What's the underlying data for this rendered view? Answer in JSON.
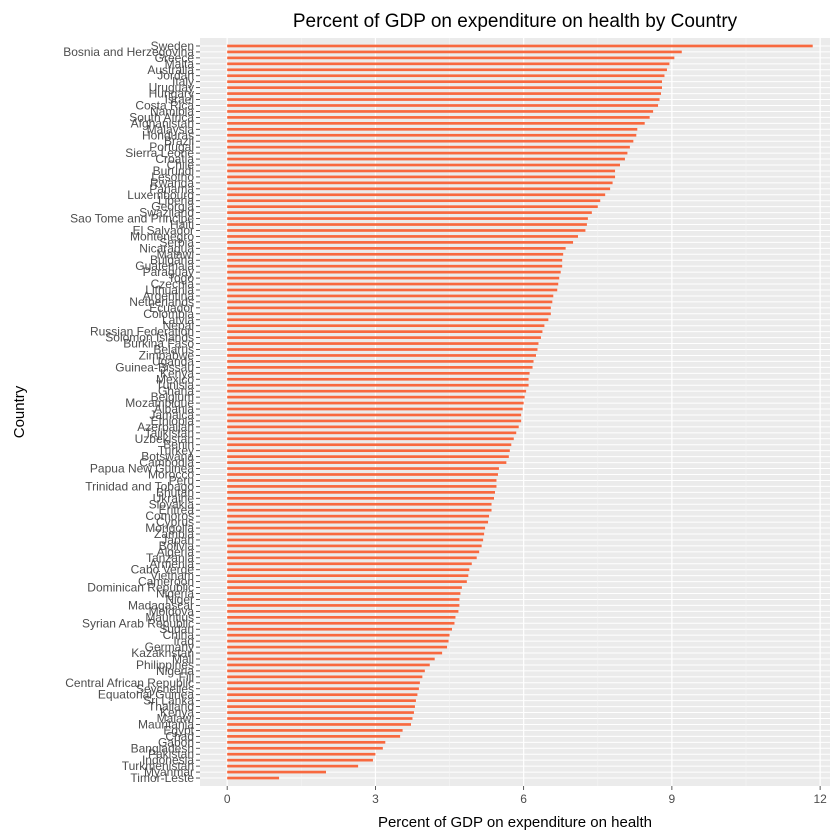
{
  "chart_data": {
    "type": "bar",
    "orientation": "horizontal",
    "title": "Percent of GDP on expenditure on health by Country",
    "xlabel": "Percent of GDP on expenditure on health",
    "ylabel": "Country",
    "xlim": [
      -0.55,
      12.2
    ],
    "x_ticks": [
      0,
      3,
      6,
      9,
      12
    ],
    "grid": true,
    "bar_color": "#f8693f",
    "panel_color": "#ebebeb",
    "categories": [
      "Sweden",
      "Bosnia and Herzegovina",
      "Greece",
      "Malta",
      "Australia",
      "Jordan",
      "Italy",
      "Uruguay",
      "Hungary",
      "Israel",
      "Costa Rica",
      "Namibia",
      "South Africa",
      "Afghanistan",
      "Malaysia",
      "Honduras",
      "Brazil",
      "Portugal",
      "Sierra Leone",
      "Croatia",
      "Chile",
      "Burundi",
      "Lesotho",
      "Rwanda",
      "Panama",
      "Luxembourg",
      "Liberia",
      "Georgia",
      "Swaziland",
      "Sao Tome and Principe",
      "Haiti",
      "El Salvador",
      "Montenegro",
      "Serbia",
      "Nicaragua",
      "Malawi",
      "Bulgaria",
      "Guatemala",
      "Paraguay",
      "Togo",
      "Czechia",
      "Lithuania",
      "Argentina",
      "Netherlands",
      "Ecuador",
      "Colombia",
      "Latvia",
      "Nepal",
      "Russian Federation",
      "Solomon Islands",
      "Burkina Faso",
      "Belarus",
      "Zimbabwe",
      "Uganda",
      "Guinea-Bissau",
      "Kenya",
      "Mexico",
      "Tunisia",
      "Ghana",
      "Belgium",
      "Mozambique",
      "Albania",
      "Jamaica",
      "Ethiopia",
      "Azerbaijan",
      "Tajikistan",
      "Uzbekistan",
      "Benin",
      "Turkey",
      "Botswana",
      "Cambodia",
      "Papua New Guinea",
      "Morocco",
      "Peru",
      "Trinidad and Tobago",
      "Bhutan",
      "Ukraine",
      "Slovakia",
      "Eritrea",
      "Comoros",
      "Cyprus",
      "Mongolia",
      "Zambia",
      "Japan",
      "Bolivia",
      "Algeria",
      "Tanzania",
      "Armenia",
      "Cabo Verde",
      "Vietnam",
      "Cameroon",
      "Dominican Republic",
      "Nigeria",
      "Niger",
      "Madagascar",
      "Moldova",
      "Mauritius",
      "Syrian Arab Republic",
      "Sudan",
      "China",
      "Iraq",
      "Germany",
      "Kazakhstan",
      "Mali",
      "Philippines",
      "Nigeria",
      "Fiji",
      "Central African Republic",
      "Seychelles",
      "Equatorial Guinea",
      "Sri Lanka",
      "Thailand",
      "Kenya",
      "Malawi",
      "Mauritania",
      "Egypt",
      "Chad",
      "Gabon",
      "Bangladesh",
      "Pakistan",
      "Indonesia",
      "Turkmenistan",
      "Myanmar",
      "Timor-Leste"
    ],
    "values": [
      11.85,
      9.2,
      9.05,
      8.95,
      8.9,
      8.85,
      8.8,
      8.8,
      8.78,
      8.75,
      8.72,
      8.62,
      8.55,
      8.45,
      8.3,
      8.28,
      8.22,
      8.15,
      8.1,
      8.05,
      7.95,
      7.85,
      7.85,
      7.8,
      7.75,
      7.65,
      7.55,
      7.5,
      7.38,
      7.3,
      7.28,
      7.25,
      7.1,
      7.0,
      6.85,
      6.8,
      6.78,
      6.78,
      6.75,
      6.72,
      6.7,
      6.68,
      6.6,
      6.58,
      6.55,
      6.55,
      6.5,
      6.42,
      6.38,
      6.35,
      6.3,
      6.28,
      6.25,
      6.2,
      6.18,
      6.12,
      6.1,
      6.1,
      6.05,
      6.02,
      6.0,
      5.98,
      5.95,
      5.95,
      5.9,
      5.85,
      5.8,
      5.75,
      5.72,
      5.7,
      5.65,
      5.5,
      5.48,
      5.45,
      5.45,
      5.42,
      5.4,
      5.35,
      5.35,
      5.3,
      5.28,
      5.22,
      5.2,
      5.18,
      5.15,
      5.1,
      5.05,
      4.95,
      4.9,
      4.88,
      4.85,
      4.75,
      4.72,
      4.7,
      4.7,
      4.68,
      4.62,
      4.6,
      4.55,
      4.5,
      4.48,
      4.45,
      4.35,
      4.2,
      4.1,
      4.0,
      3.95,
      3.9,
      3.88,
      3.85,
      3.82,
      3.8,
      3.78,
      3.75,
      3.72,
      3.55,
      3.5,
      3.2,
      3.15,
      3.0,
      2.95,
      2.65,
      2.0,
      1.05
    ]
  }
}
